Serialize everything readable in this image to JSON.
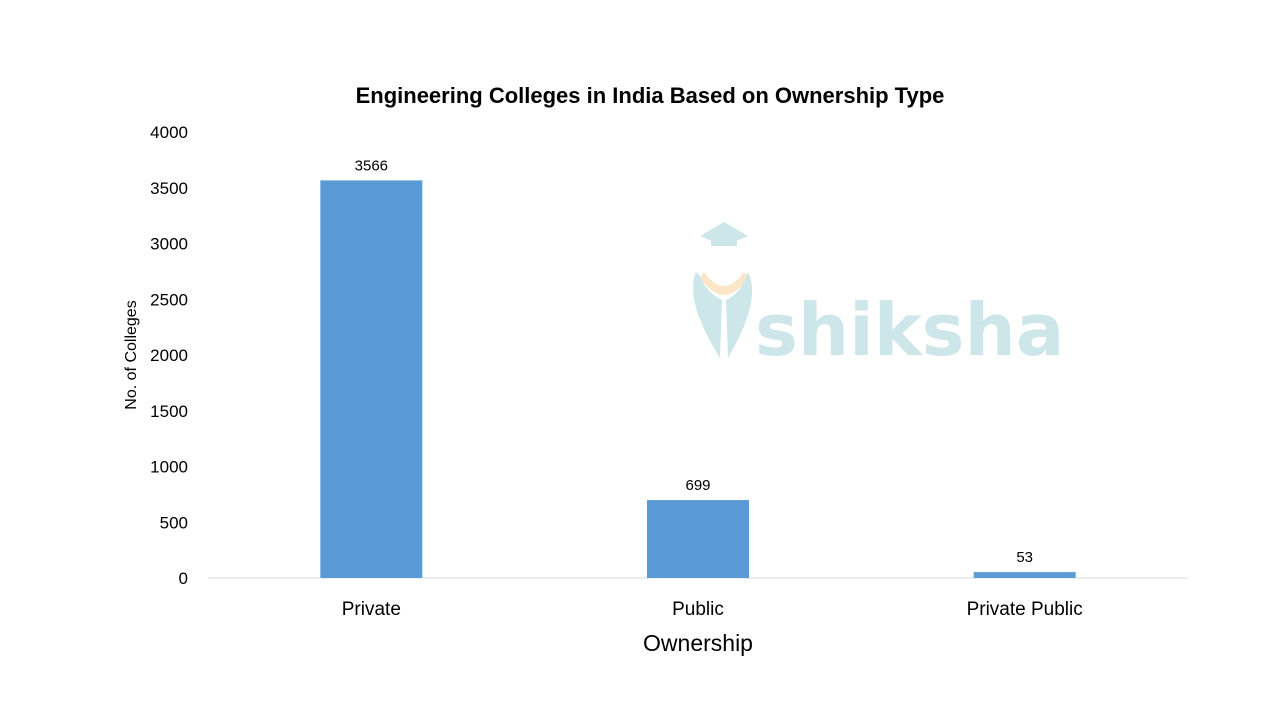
{
  "chart_data": {
    "type": "bar",
    "title": "Engineering Colleges in India Based on Ownership Type",
    "xlabel": "Ownership",
    "ylabel": "No. of Colleges",
    "categories": [
      "Private",
      "Public",
      "Private Public"
    ],
    "values": [
      3566,
      699,
      53
    ],
    "data_labels": [
      "3566",
      "699",
      "53"
    ],
    "ylim": [
      0,
      4000
    ],
    "yticks": [
      "0",
      "500",
      "1000",
      "1500",
      "2000",
      "2500",
      "3000",
      "3500",
      "4000"
    ],
    "grid": false,
    "legend": "none",
    "bar_color": "#5B9BD5"
  },
  "watermark": {
    "text": "shiksha",
    "color": "#CDE6EA",
    "accent_color": "#FBE6C8"
  }
}
